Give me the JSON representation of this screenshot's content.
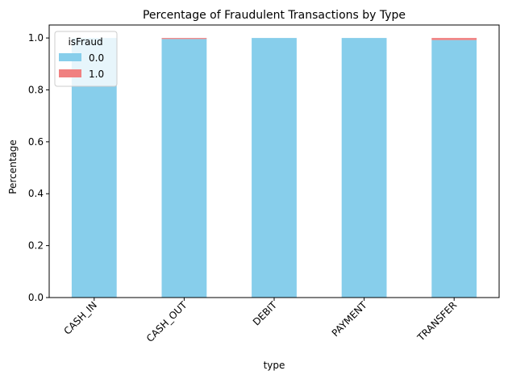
{
  "chart_data": {
    "type": "bar",
    "stacked": true,
    "title": "Percentage of Fraudulent Transactions by Type",
    "xlabel": "type",
    "ylabel": "Percentage",
    "categories": [
      "CASH_IN",
      "CASH_OUT",
      "DEBIT",
      "PAYMENT",
      "TRANSFER"
    ],
    "series": [
      {
        "name": "0.0",
        "color": "#87ceeb",
        "values": [
          1.0,
          0.996,
          1.0,
          1.0,
          0.992
        ]
      },
      {
        "name": "1.0",
        "color": "#f08080",
        "values": [
          0.0,
          0.004,
          0.0,
          0.0,
          0.008
        ]
      }
    ],
    "ylim": [
      0,
      1.05
    ],
    "yticks": [
      "0.0",
      "0.2",
      "0.4",
      "0.6",
      "0.8",
      "1.0"
    ],
    "grid": false,
    "legend": {
      "title": "isFraud",
      "position": "top-left"
    }
  }
}
